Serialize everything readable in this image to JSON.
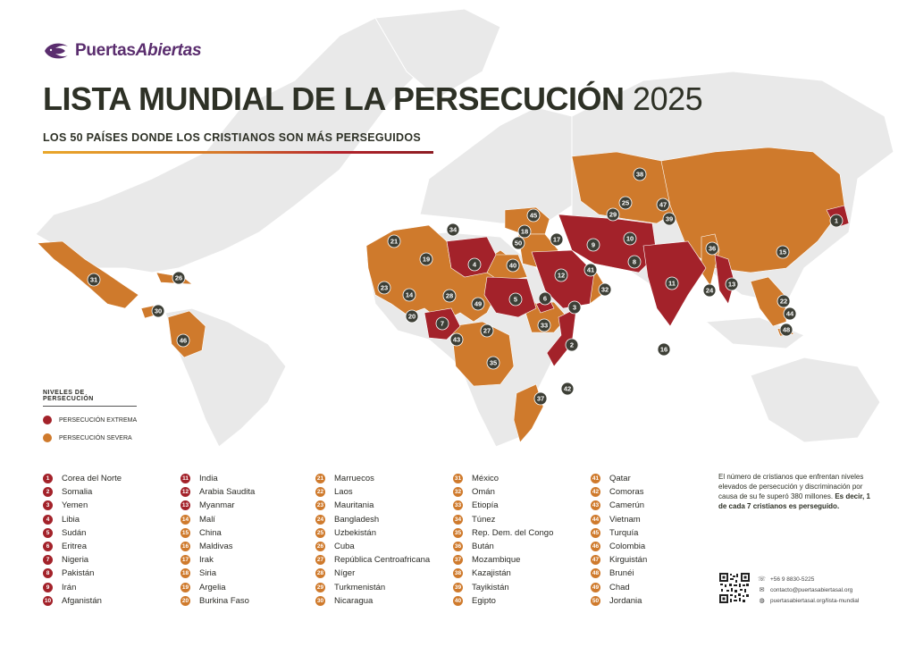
{
  "brand": {
    "name_a": "Puertas",
    "name_b": "Abiertas"
  },
  "title": {
    "main": "LISTA MUNDIAL DE LA PERSECUCIÓN",
    "year": "2025"
  },
  "subtitle": "LOS 50 PAÍSES DONDE LOS CRISTIANOS SON MÁS PERSEGUIDOS",
  "colors": {
    "extreme": "#a3222a",
    "severe": "#cf7a2c",
    "land": "#e9e9e9",
    "marker": "#3d3f36",
    "brand": "#5a2d6e"
  },
  "legend": {
    "title": "NIVELES DE PERSECUCIÓN",
    "extreme": "PERSECUCIÓN EXTREMA",
    "severe": "PERSECUCIÓN SEVERA"
  },
  "countries": [
    {
      "rank": "1",
      "name": "Corea del Norte",
      "level": "extreme"
    },
    {
      "rank": "2",
      "name": "Somalia",
      "level": "extreme"
    },
    {
      "rank": "3",
      "name": "Yemen",
      "level": "extreme"
    },
    {
      "rank": "4",
      "name": "Libia",
      "level": "extreme"
    },
    {
      "rank": "5",
      "name": "Sudán",
      "level": "extreme"
    },
    {
      "rank": "6",
      "name": "Eritrea",
      "level": "extreme"
    },
    {
      "rank": "7",
      "name": "Nigeria",
      "level": "extreme"
    },
    {
      "rank": "8",
      "name": "Pakistán",
      "level": "extreme"
    },
    {
      "rank": "9",
      "name": "Irán",
      "level": "extreme"
    },
    {
      "rank": "10",
      "name": "Afganistán",
      "level": "extreme"
    },
    {
      "rank": "11",
      "name": "India",
      "level": "extreme"
    },
    {
      "rank": "12",
      "name": "Arabia Saudita",
      "level": "extreme"
    },
    {
      "rank": "13",
      "name": "Myanmar",
      "level": "extreme"
    },
    {
      "rank": "14",
      "name": "Malí",
      "level": "severe"
    },
    {
      "rank": "15",
      "name": "China",
      "level": "severe"
    },
    {
      "rank": "16",
      "name": "Maldivas",
      "level": "severe"
    },
    {
      "rank": "17",
      "name": "Irak",
      "level": "severe"
    },
    {
      "rank": "18",
      "name": "Siria",
      "level": "severe"
    },
    {
      "rank": "19",
      "name": "Argelia",
      "level": "severe"
    },
    {
      "rank": "20",
      "name": "Burkina Faso",
      "level": "severe"
    },
    {
      "rank": "21",
      "name": "Marruecos",
      "level": "severe"
    },
    {
      "rank": "22",
      "name": "Laos",
      "level": "severe"
    },
    {
      "rank": "23",
      "name": "Mauritania",
      "level": "severe"
    },
    {
      "rank": "24",
      "name": "Bangladesh",
      "level": "severe"
    },
    {
      "rank": "25",
      "name": "Uzbekistán",
      "level": "severe"
    },
    {
      "rank": "26",
      "name": "Cuba",
      "level": "severe"
    },
    {
      "rank": "27",
      "name": "República Centroafricana",
      "level": "severe"
    },
    {
      "rank": "28",
      "name": "Níger",
      "level": "severe"
    },
    {
      "rank": "29",
      "name": "Turkmenistán",
      "level": "severe"
    },
    {
      "rank": "30",
      "name": "Nicaragua",
      "level": "severe"
    },
    {
      "rank": "31",
      "name": "México",
      "level": "severe"
    },
    {
      "rank": "32",
      "name": "Omán",
      "level": "severe"
    },
    {
      "rank": "33",
      "name": "Etiopía",
      "level": "severe"
    },
    {
      "rank": "34",
      "name": "Túnez",
      "level": "severe"
    },
    {
      "rank": "35",
      "name": "Rep. Dem. del Congo",
      "level": "severe"
    },
    {
      "rank": "36",
      "name": "Bután",
      "level": "severe"
    },
    {
      "rank": "37",
      "name": "Mozambique",
      "level": "severe"
    },
    {
      "rank": "38",
      "name": "Kazajistán",
      "level": "severe"
    },
    {
      "rank": "39",
      "name": "Tayikistán",
      "level": "severe"
    },
    {
      "rank": "40",
      "name": "Egipto",
      "level": "severe"
    },
    {
      "rank": "41",
      "name": "Qatar",
      "level": "severe"
    },
    {
      "rank": "42",
      "name": "Comoras",
      "level": "severe"
    },
    {
      "rank": "43",
      "name": "Camerún",
      "level": "severe"
    },
    {
      "rank": "44",
      "name": "Vietnam",
      "level": "severe"
    },
    {
      "rank": "45",
      "name": "Turquía",
      "level": "severe"
    },
    {
      "rank": "46",
      "name": "Colombia",
      "level": "severe"
    },
    {
      "rank": "47",
      "name": "Kirguistán",
      "level": "severe"
    },
    {
      "rank": "48",
      "name": "Brunéi",
      "level": "severe"
    },
    {
      "rank": "49",
      "name": "Chad",
      "level": "severe"
    },
    {
      "rank": "50",
      "name": "Jordania",
      "level": "severe"
    }
  ],
  "note": {
    "text": "El número de cristianos que enfrentan niveles elevados de persecución y discriminación por causa de su fe superó 380 millones.",
    "bold": "Es decir, 1 de cada 7 cristianos es perseguido."
  },
  "contact": {
    "phone": "+56 9 8830-5225",
    "email": "contacto@puertasabiertasal.org",
    "web": "puertasabiertasal.org/lista-mundial",
    "phone_icon": "whatsapp-icon",
    "email_icon": "mail-icon",
    "web_icon": "globe-icon"
  }
}
